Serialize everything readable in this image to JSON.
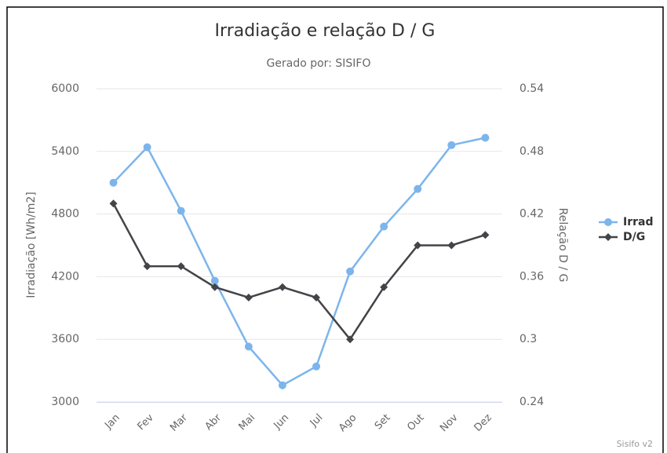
{
  "chart_data": {
    "type": "line",
    "title": "Irradiação e relação D / G",
    "subtitle": "Gerado por: SISIFO",
    "credits": "Sisifo v2",
    "y_label": "Irradiação [Wh/m2]",
    "y2_label": "Relação D / G",
    "categories": [
      "Jan",
      "Fev",
      "Mar",
      "Abr",
      "Mai",
      "Jun",
      "Jul",
      "Ago",
      "Set",
      "Out",
      "Nov",
      "Dez"
    ],
    "series": [
      {
        "name": "Irrad",
        "color": "#7cb5ec",
        "marker": "circle",
        "values": [
          5100,
          5440,
          4830,
          4160,
          3530,
          3160,
          3340,
          4250,
          4680,
          5040,
          5460,
          5530
        ]
      },
      {
        "name": "D/G",
        "color": "#434348",
        "marker": "diamond",
        "axis": "y2",
        "values": [
          0.43,
          0.37,
          0.37,
          0.35,
          0.34,
          0.35,
          0.34,
          0.3,
          0.35,
          0.39,
          0.39,
          0.4
        ]
      }
    ],
    "ylim": [
      3000,
      6000
    ],
    "yticks": [
      3000,
      3600,
      4200,
      4800,
      5400,
      6000
    ],
    "y2lim": [
      0.24,
      0.54
    ],
    "y2ticks": [
      0.24,
      0.3,
      0.36,
      0.42,
      0.48,
      0.54
    ],
    "grid": true,
    "legend": "right"
  }
}
